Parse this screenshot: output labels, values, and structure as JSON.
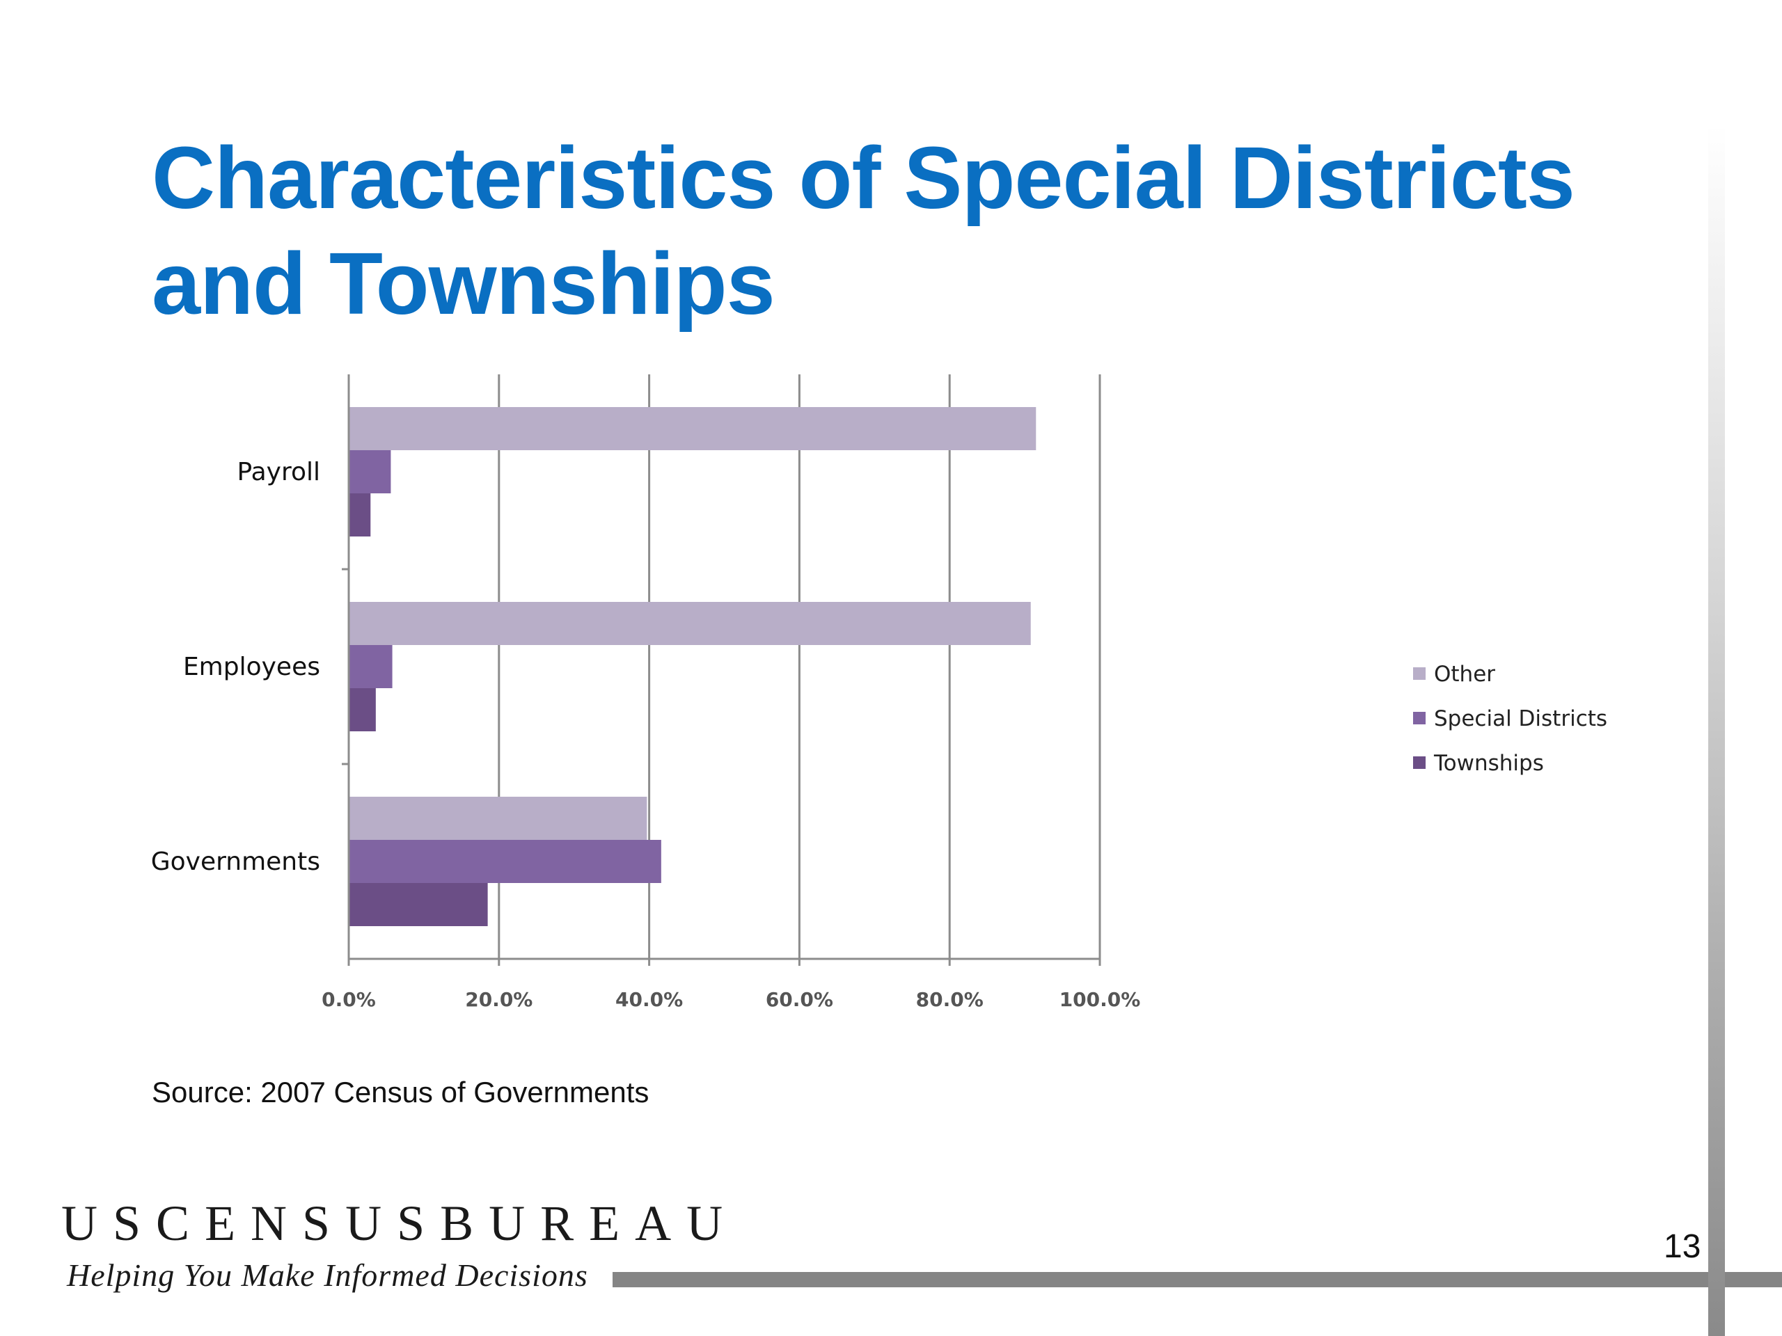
{
  "slide": {
    "title": "Characteristics of Special Districts and Townships",
    "source": "Source:  2007 Census of Governments",
    "brand": "USCENSUSBUREAU",
    "tagline": "Helping You Make Informed Decisions",
    "page_number": "13"
  },
  "chart_data": {
    "type": "bar",
    "orientation": "horizontal",
    "categories": [
      "Payroll",
      "Employees",
      "Governments"
    ],
    "series": [
      {
        "name": "Other",
        "values": [
          91.5,
          90.8,
          39.7
        ],
        "color": "#b8aec8"
      },
      {
        "name": "Special Districts",
        "values": [
          5.6,
          5.8,
          41.6
        ],
        "color": "#8064a2"
      },
      {
        "name": "Townships",
        "values": [
          2.9,
          3.6,
          18.5
        ],
        "color": "#6b4e86"
      }
    ],
    "x_ticks": [
      "0.0%",
      "20.0%",
      "40.0%",
      "60.0%",
      "80.0%",
      "100.0%"
    ],
    "xlim": [
      0,
      100
    ],
    "grid": true,
    "legend_position": "right"
  }
}
